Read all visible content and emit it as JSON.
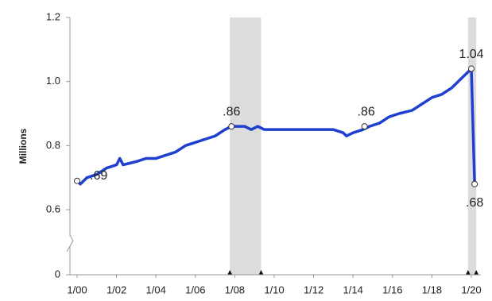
{
  "chart_data": {
    "type": "line",
    "y_label": "Millions",
    "x": [
      0,
      2,
      6,
      12,
      18,
      24,
      26,
      28,
      36,
      42,
      48,
      54,
      60,
      66,
      72,
      78,
      84,
      90,
      94,
      98,
      102,
      106,
      110,
      114,
      120,
      132,
      144,
      156,
      162,
      164,
      168,
      174,
      178,
      184,
      190,
      196,
      204,
      210,
      216,
      222,
      228,
      234,
      238,
      240,
      242
    ],
    "values": [
      0.69,
      0.68,
      0.7,
      0.71,
      0.73,
      0.74,
      0.76,
      0.74,
      0.75,
      0.76,
      0.76,
      0.77,
      0.78,
      0.8,
      0.81,
      0.82,
      0.83,
      0.85,
      0.86,
      0.86,
      0.86,
      0.85,
      0.86,
      0.85,
      0.85,
      0.85,
      0.85,
      0.85,
      0.84,
      0.83,
      0.84,
      0.85,
      0.86,
      0.87,
      0.89,
      0.9,
      0.91,
      0.93,
      0.95,
      0.96,
      0.98,
      1.01,
      1.03,
      1.04,
      0.68
    ],
    "color": "#1f3fd0",
    "xlim": [
      -4,
      246
    ],
    "xticks": [
      {
        "value": 0,
        "label": "1/00"
      },
      {
        "value": 24,
        "label": "1/02"
      },
      {
        "value": 48,
        "label": "1/04"
      },
      {
        "value": 72,
        "label": "1/06"
      },
      {
        "value": 96,
        "label": "1/08"
      },
      {
        "value": 120,
        "label": "1/10"
      },
      {
        "value": 144,
        "label": "1/12"
      },
      {
        "value": 168,
        "label": "1/14"
      },
      {
        "value": 192,
        "label": "1/16"
      },
      {
        "value": 216,
        "label": "1/18"
      },
      {
        "value": 240,
        "label": "1/20"
      }
    ],
    "ylim": [
      0,
      1.2
    ],
    "yticks": [
      0,
      0.6,
      0.8,
      {
        "value": 1.0,
        "label": "1.0"
      },
      {
        "value": 1.2,
        "label": "1.2"
      }
    ],
    "shaded": [
      [
        93,
        112
      ],
      [
        238,
        243
      ]
    ],
    "markers": [
      {
        "x": 0,
        "y": 0.69,
        "label": ".69"
      },
      {
        "x": 94,
        "y": 0.86,
        "label": ".86"
      },
      {
        "x": 175,
        "y": 0.86,
        "label": ".86"
      },
      {
        "x": 240,
        "y": 1.04,
        "label": "1.04"
      },
      {
        "x": 242,
        "y": 0.68,
        "label": ".68"
      }
    ]
  }
}
